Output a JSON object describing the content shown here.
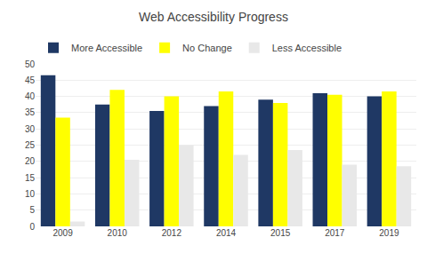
{
  "chart_data": {
    "type": "bar",
    "title": "Web Accessibility Progress",
    "categories": [
      "2009",
      "2010",
      "2012",
      "2014",
      "2015",
      "2017",
      "2019"
    ],
    "series": [
      {
        "name": "More Accessible",
        "color": "#1f3864",
        "values": [
          46.5,
          37.5,
          35.5,
          37,
          39,
          41,
          40
        ]
      },
      {
        "name": "No Change",
        "color": "#ffff00",
        "values": [
          33.5,
          42,
          40,
          41.5,
          38,
          40.5,
          41.5
        ]
      },
      {
        "name": "Less Accessible",
        "color": "#e8e8e8",
        "values": [
          1.5,
          20.5,
          25,
          22,
          23.5,
          19,
          18.5
        ]
      }
    ],
    "ylim": [
      0,
      50
    ],
    "yticks": [
      0,
      5,
      10,
      15,
      20,
      25,
      30,
      35,
      40,
      45,
      50
    ],
    "grid": true,
    "legend": "top left"
  }
}
